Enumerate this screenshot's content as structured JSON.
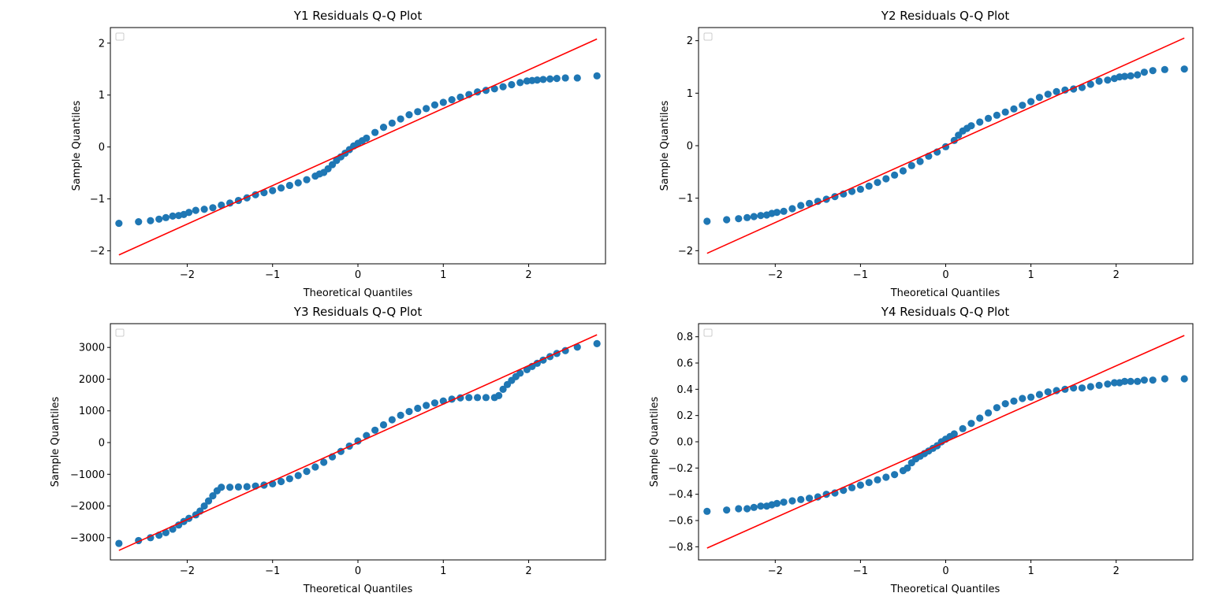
{
  "chart_data": [
    {
      "type": "scatter",
      "title": "Y1 Residuals Q-Q Plot",
      "xlabel": "Theoretical Quantiles",
      "ylabel": "Sample Quantiles",
      "xlim": [
        -2.9,
        2.9
      ],
      "ylim": [
        -2.25,
        2.3
      ],
      "xticks": [
        -2,
        -1,
        0,
        1,
        2
      ],
      "xtick_labels": [
        "−2",
        "−1",
        "0",
        "1",
        "2"
      ],
      "yticks": [
        -2,
        -1,
        0,
        1,
        2
      ],
      "ytick_labels": [
        "−2",
        "−1",
        "0",
        "1",
        "2"
      ],
      "legend": "top-left (empty)",
      "grid": false,
      "point_color": "#1f77b4",
      "line_color": "#ff0000",
      "reference_line": {
        "x": [
          -2.8,
          2.8
        ],
        "y": [
          -2.08,
          2.08
        ]
      },
      "points": {
        "x": [
          -2.8,
          -2.57,
          -2.43,
          -2.33,
          -2.25,
          -2.17,
          -2.1,
          -2.04,
          -1.98,
          -1.9,
          -1.8,
          -1.7,
          -1.6,
          -1.5,
          -1.4,
          -1.3,
          -1.2,
          -1.1,
          -1.0,
          -0.9,
          -0.8,
          -0.7,
          -0.6,
          -0.5,
          -0.45,
          -0.4,
          -0.35,
          -0.3,
          -0.25,
          -0.2,
          -0.15,
          -0.1,
          -0.05,
          0.0,
          0.05,
          0.1,
          0.2,
          0.3,
          0.4,
          0.5,
          0.6,
          0.7,
          0.8,
          0.9,
          1.0,
          1.1,
          1.2,
          1.3,
          1.4,
          1.5,
          1.6,
          1.7,
          1.8,
          1.9,
          1.98,
          2.04,
          2.1,
          2.17,
          2.25,
          2.33,
          2.43,
          2.57,
          2.8
        ],
        "y": [
          -1.47,
          -1.44,
          -1.42,
          -1.39,
          -1.36,
          -1.33,
          -1.32,
          -1.3,
          -1.26,
          -1.22,
          -1.2,
          -1.17,
          -1.12,
          -1.08,
          -1.03,
          -0.98,
          -0.92,
          -0.88,
          -0.84,
          -0.79,
          -0.74,
          -0.69,
          -0.63,
          -0.56,
          -0.52,
          -0.49,
          -0.42,
          -0.34,
          -0.26,
          -0.19,
          -0.12,
          -0.05,
          0.02,
          0.07,
          0.12,
          0.17,
          0.28,
          0.38,
          0.46,
          0.54,
          0.62,
          0.68,
          0.74,
          0.81,
          0.86,
          0.91,
          0.96,
          1.01,
          1.06,
          1.09,
          1.12,
          1.16,
          1.2,
          1.24,
          1.27,
          1.28,
          1.29,
          1.3,
          1.31,
          1.32,
          1.33,
          1.33,
          1.37
        ]
      }
    },
    {
      "type": "scatter",
      "title": "Y2 Residuals Q-Q Plot",
      "xlabel": "Theoretical Quantiles",
      "ylabel": "Sample Quantiles",
      "xlim": [
        -2.9,
        2.9
      ],
      "ylim": [
        -2.25,
        2.25
      ],
      "xticks": [
        -2,
        -1,
        0,
        1,
        2
      ],
      "xtick_labels": [
        "−2",
        "−1",
        "0",
        "1",
        "2"
      ],
      "yticks": [
        -2,
        -1,
        0,
        1,
        2
      ],
      "ytick_labels": [
        "−2",
        "−1",
        "0",
        "1",
        "2"
      ],
      "legend": "top-left (empty)",
      "grid": false,
      "point_color": "#1f77b4",
      "line_color": "#ff0000",
      "reference_line": {
        "x": [
          -2.8,
          2.8
        ],
        "y": [
          -2.05,
          2.05
        ]
      },
      "points": {
        "x": [
          -2.8,
          -2.57,
          -2.43,
          -2.33,
          -2.25,
          -2.17,
          -2.1,
          -2.04,
          -1.98,
          -1.9,
          -1.8,
          -1.7,
          -1.6,
          -1.5,
          -1.4,
          -1.3,
          -1.2,
          -1.1,
          -1.0,
          -0.9,
          -0.8,
          -0.7,
          -0.6,
          -0.5,
          -0.4,
          -0.3,
          -0.2,
          -0.1,
          0.0,
          0.1,
          0.15,
          0.2,
          0.25,
          0.3,
          0.4,
          0.5,
          0.6,
          0.7,
          0.8,
          0.9,
          1.0,
          1.1,
          1.2,
          1.3,
          1.4,
          1.5,
          1.6,
          1.7,
          1.8,
          1.9,
          1.98,
          2.04,
          2.1,
          2.17,
          2.25,
          2.33,
          2.43,
          2.57,
          2.8
        ],
        "y": [
          -1.44,
          -1.41,
          -1.39,
          -1.37,
          -1.35,
          -1.33,
          -1.32,
          -1.29,
          -1.27,
          -1.25,
          -1.2,
          -1.14,
          -1.1,
          -1.06,
          -1.02,
          -0.97,
          -0.92,
          -0.87,
          -0.83,
          -0.77,
          -0.7,
          -0.63,
          -0.56,
          -0.48,
          -0.38,
          -0.3,
          -0.2,
          -0.12,
          -0.02,
          0.1,
          0.2,
          0.28,
          0.33,
          0.38,
          0.45,
          0.52,
          0.58,
          0.64,
          0.7,
          0.77,
          0.84,
          0.92,
          0.98,
          1.03,
          1.06,
          1.08,
          1.11,
          1.17,
          1.23,
          1.25,
          1.28,
          1.31,
          1.32,
          1.33,
          1.35,
          1.4,
          1.43,
          1.45,
          1.46
        ]
      }
    },
    {
      "type": "scatter",
      "title": "Y3 Residuals Q-Q Plot",
      "xlabel": "Theoretical Quantiles",
      "ylabel": "Sample Quantiles",
      "xlim": [
        -2.9,
        2.9
      ],
      "ylim": [
        -3700,
        3750
      ],
      "xticks": [
        -2,
        -1,
        0,
        1,
        2
      ],
      "xtick_labels": [
        "−2",
        "−1",
        "0",
        "1",
        "2"
      ],
      "yticks": [
        -3000,
        -2000,
        -1000,
        0,
        1000,
        2000,
        3000
      ],
      "ytick_labels": [
        "−3000",
        "−2000",
        "−1000",
        "0",
        "1000",
        "2000",
        "3000"
      ],
      "legend": "top-left (empty)",
      "grid": false,
      "point_color": "#1f77b4",
      "line_color": "#ff0000",
      "reference_line": {
        "x": [
          -2.8,
          2.8
        ],
        "y": [
          -3400,
          3400
        ]
      },
      "points": {
        "x": [
          -2.8,
          -2.57,
          -2.43,
          -2.33,
          -2.25,
          -2.17,
          -2.1,
          -2.04,
          -1.98,
          -1.9,
          -1.85,
          -1.8,
          -1.75,
          -1.7,
          -1.65,
          -1.6,
          -1.5,
          -1.4,
          -1.3,
          -1.2,
          -1.1,
          -1.0,
          -0.9,
          -0.8,
          -0.7,
          -0.6,
          -0.5,
          -0.4,
          -0.3,
          -0.2,
          -0.1,
          0.0,
          0.1,
          0.2,
          0.3,
          0.4,
          0.5,
          0.6,
          0.7,
          0.8,
          0.9,
          1.0,
          1.1,
          1.2,
          1.3,
          1.4,
          1.5,
          1.6,
          1.65,
          1.7,
          1.75,
          1.8,
          1.85,
          1.9,
          1.98,
          2.04,
          2.1,
          2.17,
          2.25,
          2.33,
          2.43,
          2.57,
          2.8
        ],
        "y": [
          -3180,
          -3090,
          -3000,
          -2920,
          -2840,
          -2730,
          -2600,
          -2490,
          -2390,
          -2280,
          -2160,
          -2000,
          -1840,
          -1680,
          -1520,
          -1410,
          -1410,
          -1400,
          -1390,
          -1370,
          -1340,
          -1300,
          -1230,
          -1140,
          -1040,
          -910,
          -770,
          -620,
          -450,
          -280,
          -110,
          50,
          220,
          390,
          560,
          720,
          860,
          980,
          1080,
          1170,
          1250,
          1310,
          1370,
          1410,
          1420,
          1420,
          1420,
          1420,
          1480,
          1680,
          1830,
          1960,
          2080,
          2190,
          2300,
          2400,
          2500,
          2600,
          2710,
          2810,
          2900,
          3010,
          3120
        ]
      }
    },
    {
      "type": "scatter",
      "title": "Y4 Residuals Q-Q Plot",
      "xlabel": "Theoretical Quantiles",
      "ylabel": "Sample Quantiles",
      "xlim": [
        -2.9,
        2.9
      ],
      "ylim": [
        -0.9,
        0.9
      ],
      "xticks": [
        -2,
        -1,
        0,
        1,
        2
      ],
      "xtick_labels": [
        "−2",
        "−1",
        "0",
        "1",
        "2"
      ],
      "yticks": [
        -0.8,
        -0.6,
        -0.4,
        -0.2,
        0.0,
        0.2,
        0.4,
        0.6,
        0.8
      ],
      "ytick_labels": [
        "−0.8",
        "−0.6",
        "−0.4",
        "−0.2",
        "0.0",
        "0.2",
        "0.4",
        "0.6",
        "0.8"
      ],
      "legend": "top-left (empty)",
      "grid": false,
      "point_color": "#1f77b4",
      "line_color": "#ff0000",
      "reference_line": {
        "x": [
          -2.8,
          2.8
        ],
        "y": [
          -0.81,
          0.81
        ]
      },
      "points": {
        "x": [
          -2.8,
          -2.57,
          -2.43,
          -2.33,
          -2.25,
          -2.17,
          -2.1,
          -2.04,
          -1.98,
          -1.9,
          -1.8,
          -1.7,
          -1.6,
          -1.5,
          -1.4,
          -1.3,
          -1.2,
          -1.1,
          -1.0,
          -0.9,
          -0.8,
          -0.7,
          -0.6,
          -0.5,
          -0.45,
          -0.4,
          -0.35,
          -0.3,
          -0.25,
          -0.2,
          -0.15,
          -0.1,
          -0.05,
          0.0,
          0.05,
          0.1,
          0.2,
          0.3,
          0.4,
          0.5,
          0.6,
          0.7,
          0.8,
          0.9,
          1.0,
          1.1,
          1.2,
          1.3,
          1.4,
          1.5,
          1.6,
          1.7,
          1.8,
          1.9,
          1.98,
          2.04,
          2.1,
          2.17,
          2.25,
          2.33,
          2.43,
          2.57,
          2.8
        ],
        "y": [
          -0.53,
          -0.52,
          -0.51,
          -0.51,
          -0.5,
          -0.49,
          -0.49,
          -0.48,
          -0.47,
          -0.46,
          -0.45,
          -0.44,
          -0.43,
          -0.42,
          -0.4,
          -0.39,
          -0.37,
          -0.35,
          -0.33,
          -0.31,
          -0.29,
          -0.27,
          -0.25,
          -0.22,
          -0.2,
          -0.16,
          -0.13,
          -0.11,
          -0.09,
          -0.07,
          -0.05,
          -0.03,
          0.0,
          0.02,
          0.04,
          0.06,
          0.1,
          0.14,
          0.18,
          0.22,
          0.26,
          0.29,
          0.31,
          0.33,
          0.34,
          0.36,
          0.38,
          0.39,
          0.4,
          0.41,
          0.41,
          0.42,
          0.43,
          0.44,
          0.45,
          0.45,
          0.46,
          0.46,
          0.46,
          0.47,
          0.47,
          0.48,
          0.48
        ]
      }
    }
  ]
}
